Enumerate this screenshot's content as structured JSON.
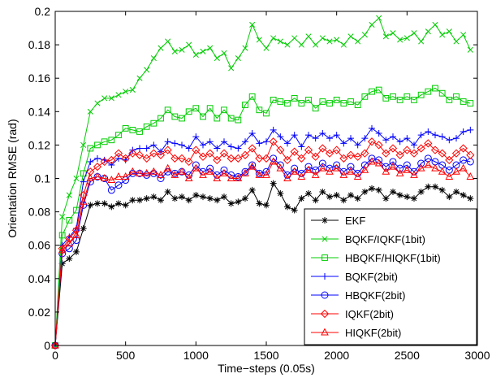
{
  "chart_data": {
    "type": "line",
    "title": "",
    "xlabel": "Time−steps (0.05s)",
    "ylabel": "Orientation RMSE (rad)",
    "xlim": [
      0,
      3000
    ],
    "ylim": [
      0,
      0.2
    ],
    "xticks": [
      0,
      500,
      1000,
      1500,
      2000,
      2500,
      3000
    ],
    "yticks": [
      0,
      0.02,
      0.04,
      0.06,
      0.08,
      0.1,
      0.12,
      0.14,
      0.16,
      0.18,
      0.2
    ],
    "xtick_labels": [
      "0",
      "500",
      "1000",
      "1500",
      "2000",
      "2500",
      "3000"
    ],
    "ytick_labels": [
      "0",
      "0.02",
      "0.04",
      "0.06",
      "0.08",
      "0.1",
      "0.12",
      "0.14",
      "0.16",
      "0.18",
      "0.2"
    ],
    "grid": false,
    "legend_position": "bottom-right",
    "x": [
      0,
      50,
      100,
      150,
      200,
      250,
      300,
      350,
      400,
      450,
      500,
      550,
      600,
      650,
      700,
      750,
      800,
      850,
      900,
      950,
      1000,
      1050,
      1100,
      1150,
      1200,
      1250,
      1300,
      1350,
      1400,
      1450,
      1500,
      1550,
      1600,
      1650,
      1700,
      1750,
      1800,
      1850,
      1900,
      1950,
      2000,
      2050,
      2100,
      2150,
      2200,
      2250,
      2300,
      2350,
      2400,
      2450,
      2500,
      2550,
      2600,
      2650,
      2700,
      2750,
      2800,
      2850,
      2900,
      2950
    ],
    "series": [
      {
        "name": "EKF",
        "color": "#000000",
        "marker": "star",
        "values": [
          0,
          0.049,
          0.052,
          0.056,
          0.07,
          0.084,
          0.085,
          0.085,
          0.083,
          0.085,
          0.084,
          0.087,
          0.087,
          0.088,
          0.089,
          0.087,
          0.092,
          0.088,
          0.089,
          0.087,
          0.09,
          0.089,
          0.088,
          0.087,
          0.089,
          0.085,
          0.086,
          0.088,
          0.093,
          0.085,
          0.084,
          0.097,
          0.091,
          0.083,
          0.081,
          0.088,
          0.091,
          0.087,
          0.092,
          0.089,
          0.09,
          0.087,
          0.09,
          0.088,
          0.092,
          0.094,
          0.093,
          0.088,
          0.092,
          0.09,
          0.089,
          0.088,
          0.092,
          0.095,
          0.095,
          0.093,
          0.089,
          0.092,
          0.09,
          0.088
        ]
      },
      {
        "name": "BQKF/IQKF(1bit)",
        "color": "#00cc00",
        "marker": "x",
        "values": [
          0,
          0.077,
          0.09,
          0.1,
          0.12,
          0.14,
          0.145,
          0.148,
          0.148,
          0.15,
          0.152,
          0.153,
          0.16,
          0.165,
          0.172,
          0.178,
          0.182,
          0.176,
          0.177,
          0.18,
          0.174,
          0.176,
          0.178,
          0.172,
          0.175,
          0.166,
          0.172,
          0.178,
          0.192,
          0.183,
          0.178,
          0.184,
          0.182,
          0.18,
          0.184,
          0.18,
          0.185,
          0.18,
          0.184,
          0.182,
          0.183,
          0.18,
          0.185,
          0.182,
          0.186,
          0.192,
          0.196,
          0.185,
          0.187,
          0.183,
          0.184,
          0.187,
          0.182,
          0.188,
          0.192,
          0.186,
          0.188,
          0.182,
          0.186,
          0.177
        ]
      },
      {
        "name": "HBQKF/HIQKF(1bit)",
        "color": "#00cc00",
        "marker": "square",
        "values": [
          0,
          0.066,
          0.075,
          0.081,
          0.103,
          0.118,
          0.12,
          0.122,
          0.123,
          0.126,
          0.13,
          0.129,
          0.128,
          0.131,
          0.133,
          0.136,
          0.141,
          0.137,
          0.136,
          0.14,
          0.142,
          0.137,
          0.142,
          0.136,
          0.141,
          0.136,
          0.135,
          0.144,
          0.149,
          0.141,
          0.139,
          0.147,
          0.146,
          0.145,
          0.148,
          0.145,
          0.147,
          0.142,
          0.146,
          0.145,
          0.147,
          0.145,
          0.146,
          0.144,
          0.149,
          0.152,
          0.153,
          0.148,
          0.149,
          0.147,
          0.149,
          0.147,
          0.15,
          0.152,
          0.154,
          0.151,
          0.147,
          0.149,
          0.146,
          0.145
        ]
      },
      {
        "name": "BQKF(2bit)",
        "color": "#0000ff",
        "marker": "plus",
        "values": [
          0,
          0.06,
          0.065,
          0.07,
          0.098,
          0.11,
          0.112,
          0.111,
          0.108,
          0.112,
          0.111,
          0.117,
          0.118,
          0.118,
          0.12,
          0.116,
          0.122,
          0.121,
          0.12,
          0.118,
          0.125,
          0.12,
          0.122,
          0.118,
          0.122,
          0.119,
          0.118,
          0.122,
          0.127,
          0.121,
          0.122,
          0.129,
          0.125,
          0.121,
          0.126,
          0.119,
          0.126,
          0.124,
          0.127,
          0.124,
          0.126,
          0.121,
          0.124,
          0.12,
          0.124,
          0.13,
          0.127,
          0.123,
          0.125,
          0.122,
          0.124,
          0.12,
          0.126,
          0.128,
          0.126,
          0.125,
          0.123,
          0.124,
          0.128,
          0.129
        ]
      },
      {
        "name": "HBQKF(2bit)",
        "color": "#0000ff",
        "marker": "circle",
        "values": [
          0,
          0.055,
          0.058,
          0.063,
          0.084,
          0.098,
          0.101,
          0.1,
          0.093,
          0.096,
          0.099,
          0.103,
          0.103,
          0.102,
          0.103,
          0.1,
          0.104,
          0.103,
          0.104,
          0.102,
          0.108,
          0.104,
          0.106,
          0.102,
          0.105,
          0.102,
          0.101,
          0.104,
          0.108,
          0.103,
          0.104,
          0.112,
          0.108,
          0.102,
          0.106,
          0.103,
          0.107,
          0.105,
          0.109,
          0.106,
          0.108,
          0.104,
          0.107,
          0.103,
          0.108,
          0.112,
          0.111,
          0.107,
          0.11,
          0.106,
          0.108,
          0.104,
          0.109,
          0.112,
          0.11,
          0.108,
          0.105,
          0.108,
          0.111,
          0.11
        ]
      },
      {
        "name": "IQKF(2bit)",
        "color": "#ff0000",
        "marker": "diamond",
        "values": [
          0,
          0.058,
          0.064,
          0.069,
          0.09,
          0.104,
          0.107,
          0.11,
          0.111,
          0.115,
          0.112,
          0.115,
          0.114,
          0.112,
          0.115,
          0.114,
          0.117,
          0.112,
          0.112,
          0.11,
          0.117,
          0.113,
          0.115,
          0.111,
          0.115,
          0.112,
          0.112,
          0.114,
          0.118,
          0.112,
          0.112,
          0.122,
          0.117,
          0.111,
          0.116,
          0.112,
          0.117,
          0.113,
          0.118,
          0.115,
          0.117,
          0.112,
          0.114,
          0.113,
          0.115,
          0.122,
          0.12,
          0.115,
          0.118,
          0.114,
          0.117,
          0.115,
          0.118,
          0.121,
          0.117,
          0.115,
          0.111,
          0.115,
          0.118,
          0.114
        ]
      },
      {
        "name": "HIQKF(2bit)",
        "color": "#ff0000",
        "marker": "triangle",
        "values": [
          0,
          0.057,
          0.061,
          0.066,
          0.086,
          0.1,
          0.101,
          0.1,
          0.099,
          0.101,
          0.101,
          0.104,
          0.103,
          0.103,
          0.104,
          0.102,
          0.106,
          0.102,
          0.104,
          0.1,
          0.106,
          0.102,
          0.104,
          0.1,
          0.103,
          0.1,
          0.1,
          0.103,
          0.107,
          0.102,
          0.102,
          0.11,
          0.106,
          0.1,
          0.104,
          0.101,
          0.105,
          0.102,
          0.106,
          0.104,
          0.106,
          0.102,
          0.104,
          0.101,
          0.105,
          0.11,
          0.109,
          0.104,
          0.107,
          0.103,
          0.105,
          0.102,
          0.106,
          0.108,
          0.106,
          0.104,
          0.101,
          0.104,
          0.106,
          0.101
        ]
      }
    ]
  }
}
